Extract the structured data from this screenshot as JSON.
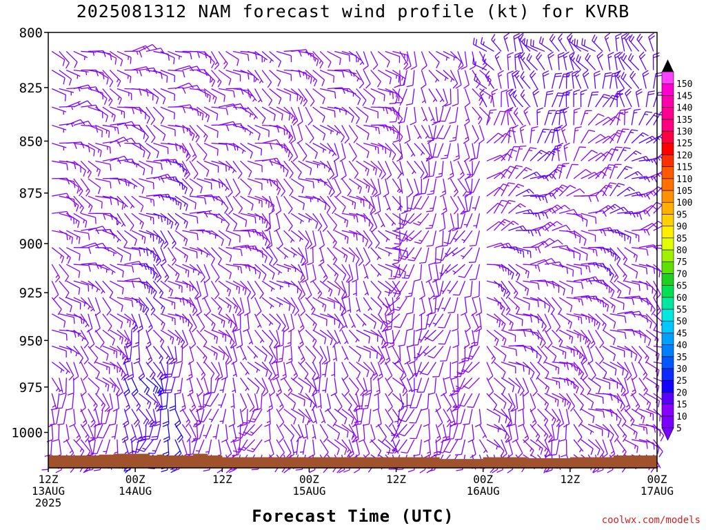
{
  "title": "2025081312 NAM forecast wind profile (kt) for KVRB",
  "xlabel": "Forecast Time (UTC)",
  "credit": "coolwx.com/models",
  "chart_data": {
    "type": "wind_barb_time_height",
    "y_axis": {
      "label": "",
      "ticks": [
        800,
        825,
        850,
        875,
        900,
        925,
        950,
        975,
        1000
      ],
      "range_hpa": [
        800,
        1020
      ],
      "inverted": true
    },
    "x_axis": {
      "range_hours": [
        0,
        84
      ],
      "ticks": [
        {
          "hour": 0,
          "line1": "12Z",
          "line2": "13AUG",
          "line3": "2025"
        },
        {
          "hour": 12,
          "line1": "00Z",
          "line2": "14AUG",
          "line3": ""
        },
        {
          "hour": 24,
          "line1": "12Z",
          "line2": "",
          "line3": ""
        },
        {
          "hour": 36,
          "line1": "00Z",
          "line2": "15AUG",
          "line3": ""
        },
        {
          "hour": 48,
          "line1": "12Z",
          "line2": "",
          "line3": ""
        },
        {
          "hour": 60,
          "line1": "00Z",
          "line2": "16AUG",
          "line3": ""
        },
        {
          "hour": 72,
          "line1": "12Z",
          "line2": "",
          "line3": ""
        },
        {
          "hour": 84,
          "line1": "00Z",
          "line2": "17AUG",
          "line3": ""
        }
      ]
    },
    "colorbar": {
      "units": "kt",
      "levels": [
        5,
        10,
        15,
        20,
        25,
        30,
        35,
        40,
        45,
        50,
        55,
        60,
        65,
        70,
        75,
        80,
        85,
        90,
        95,
        100,
        105,
        110,
        115,
        120,
        125,
        130,
        135,
        140,
        145,
        150
      ],
      "colors": [
        "#7a00ff",
        "#8a00ff",
        "#5a00ff",
        "#1400ff",
        "#0a2cff",
        "#0058ff",
        "#0080ff",
        "#00a0ff",
        "#00c8ff",
        "#00e8e0",
        "#00e8a0",
        "#00e050",
        "#20d020",
        "#60e000",
        "#a0f000",
        "#e0ff00",
        "#ffee00",
        "#ffd000",
        "#ffb000",
        "#ff9000",
        "#ff7000",
        "#ff5a00",
        "#ff3000",
        "#ff0000",
        "#ff0040",
        "#ff0080",
        "#ff0090",
        "#ff00b0",
        "#ff00d0",
        "#ff40ff"
      ]
    },
    "surface": {
      "color": "#a0522d",
      "segments": [
        {
          "hour": 0,
          "pressure": 1013
        },
        {
          "hour": 6,
          "pressure": 1013
        },
        {
          "hour": 7,
          "pressure": 1012.5
        },
        {
          "hour": 9,
          "pressure": 1012
        },
        {
          "hour": 14,
          "pressure": 1013
        },
        {
          "hour": 15,
          "pressure": 1012.5
        },
        {
          "hour": 16,
          "pressure": 1013
        },
        {
          "hour": 20,
          "pressure": 1012
        },
        {
          "hour": 22,
          "pressure": 1013
        },
        {
          "hour": 24,
          "pressure": 1014
        },
        {
          "hour": 48,
          "pressure": 1014
        },
        {
          "hour": 54,
          "pressure": 1015
        },
        {
          "hour": 60,
          "pressure": 1014
        },
        {
          "hour": 66,
          "pressure": 1014.5
        },
        {
          "hour": 72,
          "pressure": 1014
        },
        {
          "hour": 78,
          "pressure": 1013
        },
        {
          "hour": 84,
          "pressure": 1012
        }
      ]
    },
    "wind_regimes_note": "",
    "regimes": [
      {
        "hours": [
          0,
          11
        ],
        "low_dir": 180,
        "mid_dir": 110,
        "high_dir": 100,
        "low_spd": 10,
        "high_spd": 10
      },
      {
        "hours": [
          11,
          18
        ],
        "low_dir": 190,
        "mid_dir": 120,
        "high_dir": 100,
        "low_spd": 20,
        "high_spd": 10
      },
      {
        "hours": [
          18,
          30
        ],
        "low_dir": 200,
        "mid_dir": 120,
        "high_dir": 110,
        "low_spd": 10,
        "high_spd": 10
      },
      {
        "hours": [
          30,
          48
        ],
        "low_dir": 160,
        "mid_dir": 140,
        "high_dir": 120,
        "low_spd": 10,
        "high_spd": 10
      },
      {
        "hours": [
          48,
          60
        ],
        "low_dir": 180,
        "mid_dir": 200,
        "high_dir": 150,
        "low_spd": 10,
        "high_spd": 10
      },
      {
        "hours": [
          60,
          72
        ],
        "low_dir": 160,
        "mid_dir": 100,
        "high_dir": 300,
        "low_spd": 10,
        "high_spd": 15
      },
      {
        "hours": [
          72,
          84
        ],
        "low_dir": 140,
        "mid_dir": 110,
        "high_dir": 320,
        "low_spd": 10,
        "high_spd": 15
      }
    ]
  }
}
